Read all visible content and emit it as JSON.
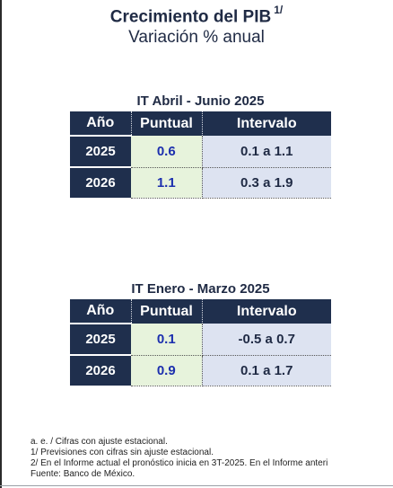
{
  "title": "Crecimiento del PIB",
  "title_sup": "1/",
  "subtitle": "Variación % anual",
  "tables": [
    {
      "caption": "IT Abril - Junio 2025",
      "headers": [
        "Año",
        "Puntual",
        "Intervalo"
      ],
      "rows": [
        {
          "year": "2025",
          "puntual": "0.6",
          "intervalo": "0.1 a 1.1"
        },
        {
          "year": "2026",
          "puntual": "1.1",
          "intervalo": "0.3 a 1.9"
        }
      ]
    },
    {
      "caption": "IT Enero - Marzo 2025",
      "headers": [
        "Año",
        "Puntual",
        "Intervalo"
      ],
      "rows": [
        {
          "year": "2025",
          "puntual": "0.1",
          "intervalo": "-0.5 a 0.7"
        },
        {
          "year": "2026",
          "puntual": "0.9",
          "intervalo": "0.1 a 1.7"
        }
      ]
    }
  ],
  "notes": [
    "a. e. / Cifras con ajuste estacional.",
    "1/ Previsiones con cifras sin ajuste estacional.",
    "2/ En el Informe actual el pronóstico inicia en 3T-2025. En el Informe anteri",
    "Fuente: Banco de México."
  ],
  "colors": {
    "header_bg": "#1f2f4d",
    "puntual_bg": "#e7f3dc",
    "puntual_text": "#1c2fae",
    "intervalo_bg": "#dde3f1",
    "title_text": "#1f2a44"
  }
}
